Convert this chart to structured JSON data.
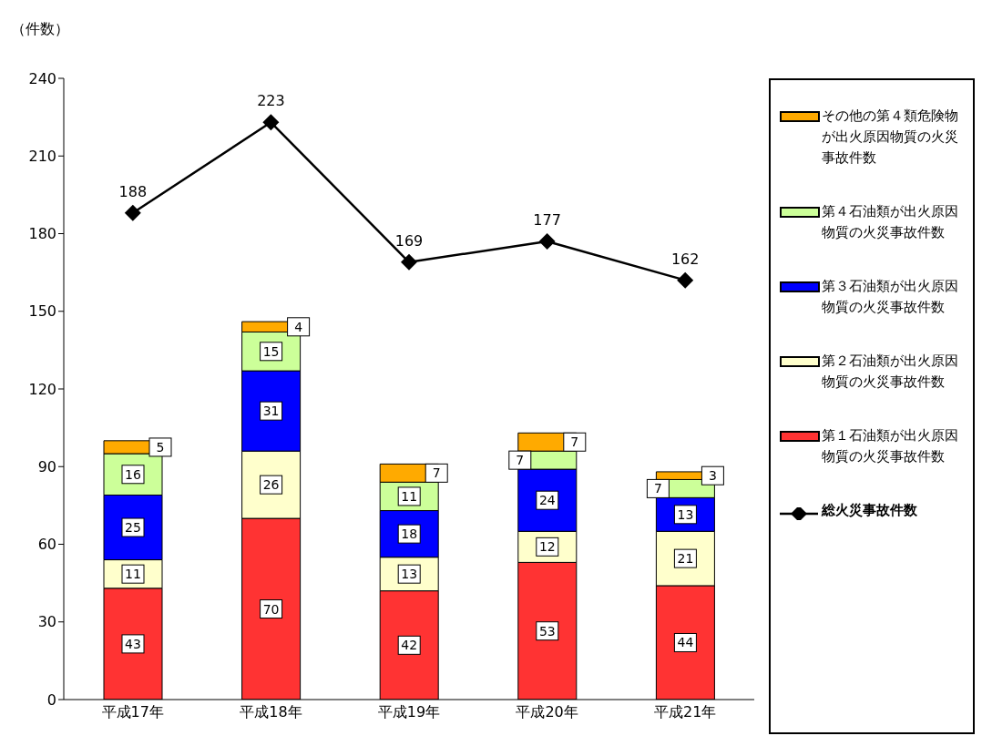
{
  "chart_data": {
    "type": "bar",
    "ylabel": "（件数）",
    "categories": [
      "平成17年",
      "平成18年",
      "平成19年",
      "平成20年",
      "平成21年"
    ],
    "stacked": true,
    "ylim": [
      0,
      240
    ],
    "yticks": [
      0,
      30,
      60,
      90,
      120,
      150,
      180,
      210,
      240
    ],
    "grid": false,
    "legend": "right",
    "data_labels": true,
    "series": [
      {
        "name": "第１石油類が出火原因物質の火災事故件数",
        "color": "#ff3333",
        "values": [
          43,
          70,
          42,
          53,
          44
        ]
      },
      {
        "name": "第２石油類が出火原因物質の火災事故件数",
        "color": "#ffffcc",
        "values": [
          11,
          26,
          13,
          12,
          21
        ]
      },
      {
        "name": "第３石油類が出火原因物質の火災事故件数",
        "color": "#0000ff",
        "values": [
          25,
          31,
          18,
          24,
          13
        ]
      },
      {
        "name": "第４石油類が出火原因物質の火災事故件数",
        "color": "#ccff99",
        "values": [
          16,
          15,
          11,
          7,
          7
        ]
      },
      {
        "name": "その他の第４類危険物が出火原因物質の火災事故件数",
        "color": "#ffaa00",
        "values": [
          5,
          4,
          7,
          7,
          3
        ]
      },
      {
        "name": "総火災事故件数",
        "type": "line",
        "color": "#000000",
        "marker": "diamond",
        "values": [
          188,
          223,
          169,
          177,
          162
        ]
      }
    ]
  }
}
